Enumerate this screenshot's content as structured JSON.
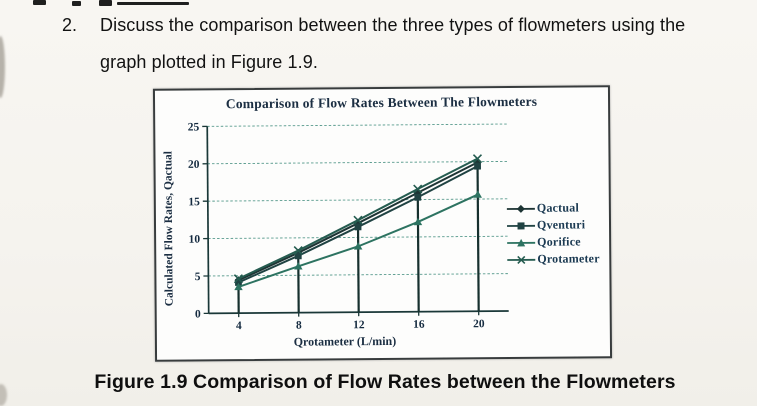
{
  "page": {
    "question": {
      "number": "2.",
      "line1": "Discuss the comparison between the three types of flowmeters using the",
      "line2": "graph plotted in Figure 1.9."
    },
    "caption": "Figure 1.9 Comparison of Flow Rates between the Flowmeters"
  },
  "chart_data": {
    "type": "line",
    "title": "Comparison of Flow Rates Between The Flowmeters",
    "xlabel": "Qrotameter (L/min)",
    "ylabel": "Calculated Flow Rates, Qactual",
    "x": [
      4,
      8,
      12,
      16,
      20
    ],
    "xticks": [
      4,
      8,
      12,
      16,
      20
    ],
    "yticks": [
      0,
      5,
      10,
      15,
      20,
      25
    ],
    "xlim": [
      2,
      22
    ],
    "ylim": [
      0,
      25
    ],
    "grid": "horizontal dashed teal gridlines at each y tick",
    "legend_position": "inside-right",
    "drop_lines": "dark vertical line at each x value from baseline up to topmost series point",
    "series": [
      {
        "name": "Qactual",
        "marker": "diamond",
        "color": "#1d3434",
        "values": [
          4.4,
          8.0,
          11.9,
          15.9,
          19.9
        ]
      },
      {
        "name": "Qventuri",
        "marker": "square",
        "color": "#204343",
        "values": [
          4.1,
          7.6,
          11.4,
          15.3,
          19.4
        ]
      },
      {
        "name": "Qorifice",
        "marker": "triangle",
        "color": "#2d7361",
        "values": [
          3.5,
          6.2,
          8.8,
          12.0,
          15.6
        ]
      },
      {
        "name": "Qrotameter",
        "marker": "x",
        "color": "#255c50",
        "values": [
          4.6,
          8.3,
          12.3,
          16.4,
          20.4
        ]
      }
    ],
    "colors": {
      "axis": "#1a3838",
      "grid": "#579a8c",
      "text": "#1c3048",
      "drop_line": "#16302e"
    }
  }
}
